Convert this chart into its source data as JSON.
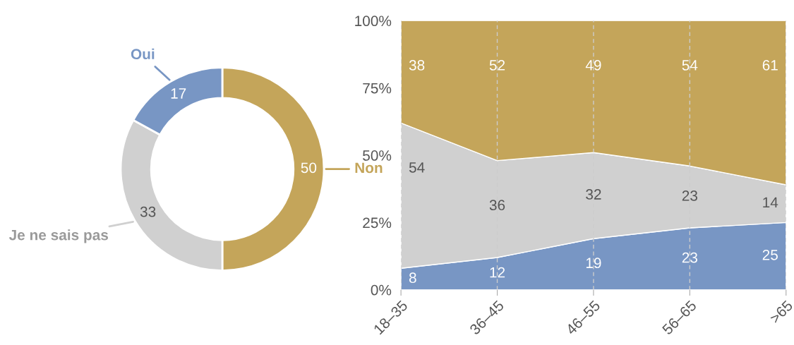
{
  "chart_data": [
    {
      "type": "donut",
      "categories": [
        "Non",
        "Je ne sais pas",
        "Oui"
      ],
      "values": [
        50,
        33,
        17
      ],
      "colors": [
        "#c4a55a",
        "#d0d0d0",
        "#7896c4"
      ],
      "data_labels": true,
      "legend": false
    },
    {
      "type": "area",
      "stacked": true,
      "categories": [
        "18–35",
        "36–45",
        "46–55",
        "56–65",
        ">65"
      ],
      "series": [
        {
          "color": "#7896c4",
          "values": [
            8,
            12,
            19,
            23,
            25
          ]
        },
        {
          "color": "#d0d0d0",
          "values": [
            54,
            36,
            32,
            23,
            14
          ]
        },
        {
          "color": "#c4a55a",
          "values": [
            38,
            52,
            49,
            54,
            61
          ]
        }
      ],
      "ylim": [
        0,
        100
      ],
      "yticks": [
        {
          "value": 0,
          "label": "0%"
        },
        {
          "value": 25,
          "label": "25%"
        },
        {
          "value": 50,
          "label": "50%"
        },
        {
          "value": 75,
          "label": "75%"
        },
        {
          "value": 100,
          "label": "100%"
        }
      ],
      "grid": "x",
      "data_labels": true,
      "legend": false
    }
  ]
}
